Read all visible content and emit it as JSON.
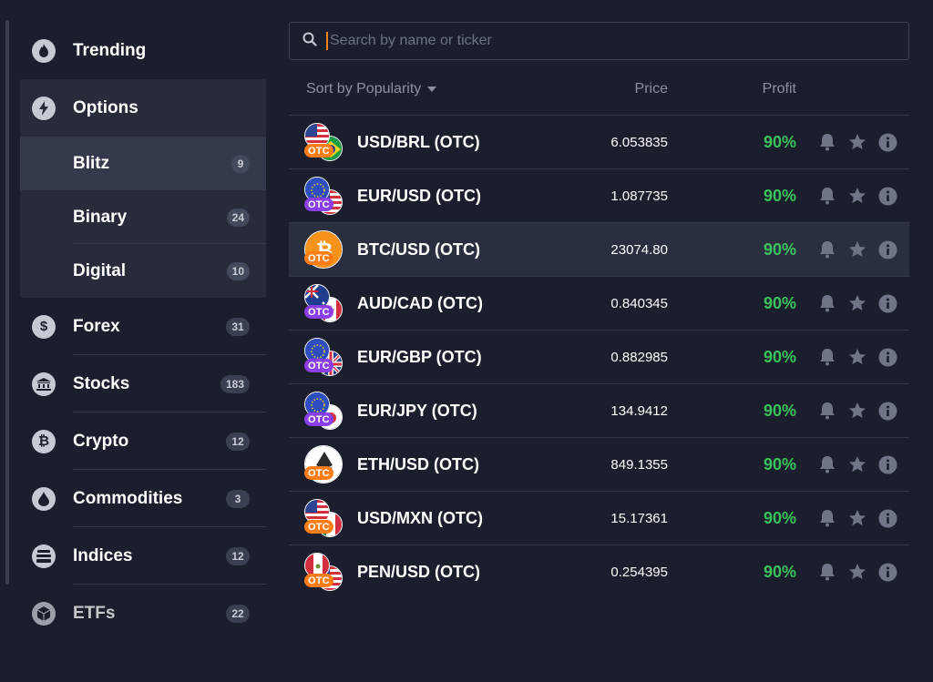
{
  "colors": {
    "background": "#1b1f2d",
    "panel": "#272b3a",
    "active": "#343a4b",
    "profit_green": "#3ac35c",
    "otc_orange": "#ff7d14",
    "otc_purple": "#8a3ee8",
    "icon_gray": "#6f7486"
  },
  "sidebar": {
    "items": [
      {
        "label": "Trending",
        "icon": "flame-icon",
        "badge": ""
      },
      {
        "label": "Options",
        "icon": "lightning-icon",
        "badge": ""
      },
      {
        "label": "Forex",
        "icon": "dollar-icon",
        "badge": "31"
      },
      {
        "label": "Stocks",
        "icon": "bank-icon",
        "badge": "183"
      },
      {
        "label": "Crypto",
        "icon": "bitcoin-icon",
        "badge": "12"
      },
      {
        "label": "Commodities",
        "icon": "drop-icon",
        "badge": "3"
      },
      {
        "label": "Indices",
        "icon": "stack-icon",
        "badge": "12"
      },
      {
        "label": "ETFs",
        "icon": "cube-icon",
        "badge": "22"
      }
    ],
    "options_sub": [
      {
        "label": "Blitz",
        "badge": "9"
      },
      {
        "label": "Binary",
        "badge": "24"
      },
      {
        "label": "Digital",
        "badge": "10"
      }
    ]
  },
  "search": {
    "placeholder": "Search by name or ticker",
    "value": ""
  },
  "list_header": {
    "sort_label": "Sort by Popularity",
    "price_label": "Price",
    "profit_label": "Profit"
  },
  "assets": [
    {
      "name": "USD/BRL (OTC)",
      "price": "6.053835",
      "profit": "90%",
      "otc_color": "orange",
      "flags": [
        "us",
        "br"
      ]
    },
    {
      "name": "EUR/USD (OTC)",
      "price": "1.087735",
      "profit": "90%",
      "otc_color": "purple",
      "flags": [
        "eu",
        "us"
      ]
    },
    {
      "name": "BTC/USD (OTC)",
      "price": "23074.80",
      "profit": "90%",
      "otc_color": "orange",
      "flags": [
        "btc"
      ]
    },
    {
      "name": "AUD/CAD (OTC)",
      "price": "0.840345",
      "profit": "90%",
      "otc_color": "purple",
      "flags": [
        "au",
        "ca"
      ]
    },
    {
      "name": "EUR/GBP (OTC)",
      "price": "0.882985",
      "profit": "90%",
      "otc_color": "purple",
      "flags": [
        "eu",
        "gb"
      ]
    },
    {
      "name": "EUR/JPY (OTC)",
      "price": "134.9412",
      "profit": "90%",
      "otc_color": "purple",
      "flags": [
        "eu",
        "jp"
      ]
    },
    {
      "name": "ETH/USD (OTC)",
      "price": "849.1355",
      "profit": "90%",
      "otc_color": "orange",
      "flags": [
        "eth"
      ]
    },
    {
      "name": "USD/MXN (OTC)",
      "price": "15.17361",
      "profit": "90%",
      "otc_color": "orange",
      "flags": [
        "us",
        "mx"
      ]
    },
    {
      "name": "PEN/USD (OTC)",
      "price": "0.254395",
      "profit": "90%",
      "otc_color": "orange",
      "flags": [
        "pe",
        "us"
      ]
    }
  ],
  "otc_label": "OTC"
}
